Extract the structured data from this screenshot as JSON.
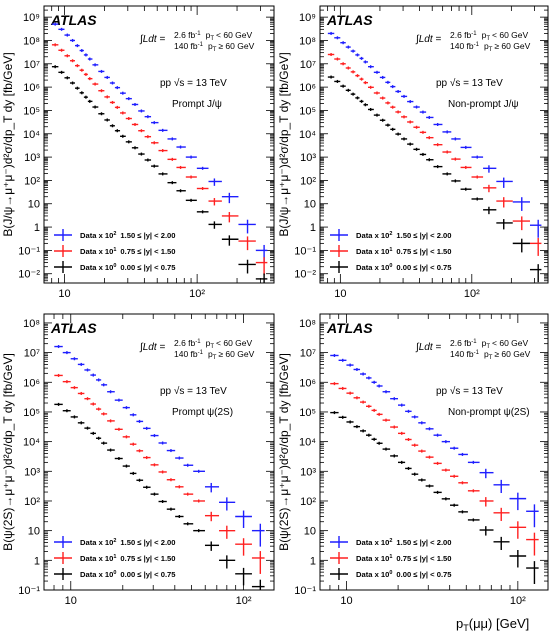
{
  "figure": {
    "x_axis_label": "p",
    "x_axis_label_sub": "T",
    "x_axis_label_tail": "(μμ) [GeV]",
    "atlas_label": "ATLAS",
    "lumi": {
      "integral": "∫Ldt =",
      "row1_value": "2.6 fb",
      "row1_exp": "-1",
      "row1_cut": "< 60 GeV",
      "row2_value": "140 fb",
      "row2_exp": "-1",
      "row2_cut": "≥ 60 GeV",
      "pt_symbol": "p",
      "pt_sub": "T"
    },
    "energy": "pp √s = 13 TeV",
    "legend": [
      {
        "label": "Data x 10",
        "exp": "2",
        "range": "1.50 ≤ |y| < 2.00",
        "color": "#1f1fff"
      },
      {
        "label": "Data x 10",
        "exp": "1",
        "range": "0.75 ≤ |y| < 1.50",
        "color": "#ff2020"
      },
      {
        "label": "Data x 10",
        "exp": "0",
        "range": "0.00 ≤ |y| < 0.75",
        "color": "#000000"
      }
    ],
    "y_ticks": {
      "jpsi": [
        "10⁻²",
        "10⁻¹",
        "1",
        "10",
        "10²",
        "10³",
        "10⁴",
        "10⁵",
        "10⁶",
        "10⁷",
        "10⁸",
        "10⁹"
      ],
      "psi2s": [
        "10⁻¹",
        "1",
        "10",
        "10²",
        "10³",
        "10⁴",
        "10⁵",
        "10⁶",
        "10⁷",
        "10⁸"
      ]
    },
    "x_ticks": [
      "10",
      "10²"
    ]
  },
  "chart_data": [
    {
      "type": "scatter",
      "process_label": "Prompt J/ψ",
      "ylabel": "B(J/ψ→μ⁺μ⁻)d²σ/dp_T dy [fb/GeV]",
      "xlabel": "p_T(μμ) [GeV]",
      "x_scale": "log",
      "y_scale": "log",
      "xlim": [
        7,
        380
      ],
      "ylim": [
        0.004,
        3000000000
      ],
      "series": [
        {
          "name": "Data x 10² 1.50 ≤ |y| < 2.00",
          "color": "#1f1fff",
          "x": [
            8.5,
            9.5,
            10.5,
            11.5,
            12.5,
            13.5,
            14.5,
            15.5,
            17,
            19,
            21,
            23,
            25,
            27.5,
            30.5,
            34,
            38,
            42.5,
            47.5,
            55,
            65,
            75,
            90,
            110,
            135,
            175,
            240,
            320
          ],
          "y": [
            500000000,
            300000000,
            170000000,
            100000000,
            60000000,
            37000000,
            24000000,
            16000000,
            9000000,
            4700000,
            2600000,
            1500000,
            950000,
            550000,
            320000,
            180000,
            95000,
            54000,
            30000,
            14000,
            6000,
            2700,
            1000,
            330,
            90,
            20,
            1.3,
            0.1
          ]
        },
        {
          "name": "Data x 10¹ 0.75 ≤ |y| < 1.50",
          "color": "#ff2020",
          "x": [
            8.5,
            9.5,
            10.5,
            11.5,
            12.5,
            13.5,
            14.5,
            15.5,
            17,
            19,
            21,
            23,
            25,
            27.5,
            30.5,
            34,
            38,
            42.5,
            47.5,
            55,
            65,
            75,
            90,
            110,
            135,
            175,
            240,
            320
          ],
          "y": [
            65000000,
            38000000,
            22000000,
            13500000,
            8300000,
            5300000,
            3500000,
            2300000,
            1350000,
            700000,
            380000,
            220000,
            135000,
            78000,
            45000,
            25000,
            13500,
            7500,
            4100,
            1900,
            800,
            360,
            140,
            45,
            13,
            3,
            0.25,
            0.03
          ]
        },
        {
          "name": "Data x 10⁰ 0.00 ≤ |y| < 0.75",
          "color": "#000000",
          "x": [
            8.5,
            9.5,
            10.5,
            11.5,
            12.5,
            13.5,
            14.5,
            15.5,
            17,
            19,
            21,
            23,
            25,
            27.5,
            30.5,
            34,
            38,
            42.5,
            47.5,
            55,
            65,
            75,
            90,
            110,
            135,
            175,
            240,
            320
          ],
          "y": [
            7500000,
            4300000,
            2500000,
            1500000,
            900000,
            570000,
            370000,
            245000,
            140000,
            72000,
            39000,
            22000,
            13500,
            7800,
            4500,
            2500,
            1350,
            750,
            410,
            190,
            80,
            36,
            14,
            4.5,
            1.3,
            0.3,
            0.025,
            0.006
          ]
        }
      ]
    },
    {
      "type": "scatter",
      "process_label": "Non-prompt J/ψ",
      "ylabel": "B(J/ψ→μ⁺μ⁻)d²σ/dp_T dy [fb/GeV]",
      "xlabel": "p_T(μμ) [GeV]",
      "x_scale": "log",
      "y_scale": "log",
      "xlim": [
        7,
        380
      ],
      "ylim": [
        0.004,
        3000000000
      ],
      "series": [
        {
          "name": "Data x 10² 1.50 ≤ |y| < 2.00",
          "color": "#1f1fff",
          "x": [
            8.5,
            9.5,
            10.5,
            11.5,
            12.5,
            13.5,
            14.5,
            15.5,
            17,
            19,
            21,
            23,
            25,
            27.5,
            30.5,
            34,
            38,
            42.5,
            47.5,
            55,
            65,
            75,
            90,
            110,
            135,
            175,
            240,
            320
          ],
          "y": [
            200000000,
            130000000,
            80000000,
            52000000,
            35000000,
            24000000,
            17000000,
            12000000,
            7500000,
            4300000,
            2600000,
            1600000,
            1050000,
            650000,
            400000,
            240000,
            140000,
            85000,
            50000,
            25000,
            12000,
            6000,
            2600,
            1000,
            330,
            90,
            12,
            1.2
          ]
        },
        {
          "name": "Data x 10¹ 0.75 ≤ |y| < 1.50",
          "color": "#ff2020",
          "x": [
            8.5,
            9.5,
            10.5,
            11.5,
            12.5,
            13.5,
            14.5,
            15.5,
            17,
            19,
            21,
            23,
            25,
            27.5,
            30.5,
            34,
            38,
            42.5,
            47.5,
            55,
            65,
            75,
            90,
            110,
            135,
            175,
            240,
            320
          ],
          "y": [
            25000000,
            16000000,
            10000000,
            6600000,
            4500000,
            3100000,
            2200000,
            1550000,
            980000,
            560000,
            340000,
            210000,
            138000,
            86000,
            53000,
            32000,
            19000,
            11500,
            6800,
            3400,
            1650,
            820,
            360,
            140,
            48,
            13,
            1.8,
            0.2
          ]
        },
        {
          "name": "Data x 10⁰ 0.00 ≤ |y| < 0.75",
          "color": "#000000",
          "x": [
            8.5,
            9.5,
            10.5,
            11.5,
            12.5,
            13.5,
            14.5,
            15.5,
            17,
            19,
            21,
            23,
            25,
            27.5,
            30.5,
            34,
            38,
            42.5,
            47.5,
            55,
            65,
            75,
            90,
            110,
            135,
            175,
            240,
            320
          ],
          "y": [
            2700000,
            1750000,
            1100000,
            730000,
            500000,
            345000,
            245000,
            175000,
            110000,
            63000,
            38000,
            23500,
            15500,
            9700,
            6000,
            3600,
            2150,
            1300,
            770,
            390,
            190,
            95,
            42,
            16,
            5.5,
            1.5,
            0.2,
            0.015
          ]
        }
      ]
    },
    {
      "type": "scatter",
      "process_label": "Prompt ψ(2S)",
      "ylabel": "B(ψ(2S)→μ⁺μ⁻)d²σ/dp_T dy [fb/GeV]",
      "xlabel": "p_T(μμ) [GeV]",
      "x_scale": "log",
      "y_scale": "log",
      "xlim": [
        7,
        150
      ],
      "ylim": [
        0.1,
        200000000
      ],
      "series": [
        {
          "name": "Data x 10² 1.50 ≤ |y| < 2.00",
          "color": "#1f1fff",
          "x": [
            8.5,
            9.5,
            10.5,
            11.5,
            12.5,
            13.5,
            14.5,
            15.5,
            17,
            19,
            21,
            23,
            25,
            27.5,
            30.5,
            34,
            38,
            42.5,
            47.5,
            55,
            65,
            80,
            100,
            125
          ],
          "y": [
            16000000,
            10000000,
            6200000,
            4000000,
            2600000,
            1750000,
            1200000,
            820000,
            480000,
            250000,
            140000,
            80000,
            48000,
            28000,
            16000,
            9000,
            5000,
            2800,
            1600,
            1000,
            300,
            90,
            30,
            10
          ]
        },
        {
          "name": "Data x 10¹ 0.75 ≤ |y| < 1.50",
          "color": "#ff2020",
          "x": [
            8.5,
            9.5,
            10.5,
            11.5,
            12.5,
            13.5,
            14.5,
            15.5,
            17,
            19,
            21,
            23,
            25,
            27.5,
            30.5,
            34,
            38,
            42.5,
            47.5,
            55,
            65,
            80,
            100,
            125
          ],
          "y": [
            1700000,
            1050000,
            660000,
            420000,
            280000,
            185000,
            125000,
            86000,
            50000,
            26000,
            14500,
            8200,
            4900,
            2900,
            1650,
            950,
            520,
            300,
            170,
            100,
            32,
            10,
            3.5,
            1.2
          ]
        },
        {
          "name": "Data x 10⁰ 0.00 ≤ |y| < 0.75",
          "color": "#000000",
          "x": [
            8.5,
            9.5,
            10.5,
            11.5,
            12.5,
            13.5,
            14.5,
            15.5,
            17,
            19,
            21,
            23,
            25,
            27.5,
            30.5,
            34,
            38,
            42.5,
            47.5,
            55,
            65,
            80,
            100,
            125
          ],
          "y": [
            180000,
            110000,
            68000,
            43000,
            28500,
            19000,
            13000,
            8900,
            5200,
            2700,
            1500,
            850,
            500,
            290,
            170,
            96,
            53,
            30,
            17,
            10,
            3.2,
            1.0,
            0.35,
            0.13
          ]
        }
      ]
    },
    {
      "type": "scatter",
      "process_label": "Non-prompt ψ(2S)",
      "ylabel": "B(ψ(2S)→μ⁺μ⁻)d²σ/dp_T dy [fb/GeV]",
      "xlabel": "p_T(μμ) [GeV]",
      "x_scale": "log",
      "y_scale": "log",
      "xlim": [
        7,
        150
      ],
      "ylim": [
        0.1,
        200000000
      ],
      "series": [
        {
          "name": "Data x 10² 1.50 ≤ |y| < 2.00",
          "color": "#1f1fff",
          "x": [
            8.5,
            9.5,
            10.5,
            11.5,
            12.5,
            13.5,
            14.5,
            15.5,
            17,
            19,
            21,
            23,
            25,
            27.5,
            30.5,
            34,
            38,
            42.5,
            47.5,
            55,
            65,
            80,
            100,
            125
          ],
          "y": [
            8000000,
            5500000,
            3800000,
            2700000,
            1900000,
            1400000,
            1000000,
            750000,
            480000,
            280000,
            170000,
            105000,
            68000,
            43000,
            27000,
            16500,
            10000,
            6000,
            3700,
            2000,
            900,
            350,
            120,
            45
          ]
        },
        {
          "name": "Data x 10¹ 0.75 ≤ |y| < 1.50",
          "color": "#ff2020",
          "x": [
            8.5,
            9.5,
            10.5,
            11.5,
            12.5,
            13.5,
            14.5,
            15.5,
            17,
            19,
            21,
            23,
            25,
            27.5,
            30.5,
            34,
            38,
            42.5,
            47.5,
            55,
            65,
            80,
            100,
            125
          ],
          "y": [
            900000,
            620000,
            430000,
            300000,
            215000,
            155000,
            113000,
            83000,
            53000,
            31000,
            19000,
            11800,
            7600,
            4800,
            3000,
            1850,
            1100,
            680,
            410,
            220,
            100,
            40,
            13,
            5
          ]
        },
        {
          "name": "Data x 10⁰ 0.00 ≤ |y| < 0.75",
          "color": "#000000",
          "x": [
            8.5,
            9.5,
            10.5,
            11.5,
            12.5,
            13.5,
            14.5,
            15.5,
            17,
            19,
            21,
            23,
            25,
            27.5,
            30.5,
            34,
            38,
            42.5,
            47.5,
            55,
            65,
            80,
            100,
            125
          ],
          "y": [
            95000,
            66000,
            46000,
            32000,
            23000,
            16500,
            12000,
            8800,
            5600,
            3300,
            2000,
            1250,
            800,
            510,
            320,
            195,
            118,
            72,
            43,
            23,
            10.5,
            4.2,
            1.4,
            0.55
          ]
        }
      ]
    }
  ]
}
